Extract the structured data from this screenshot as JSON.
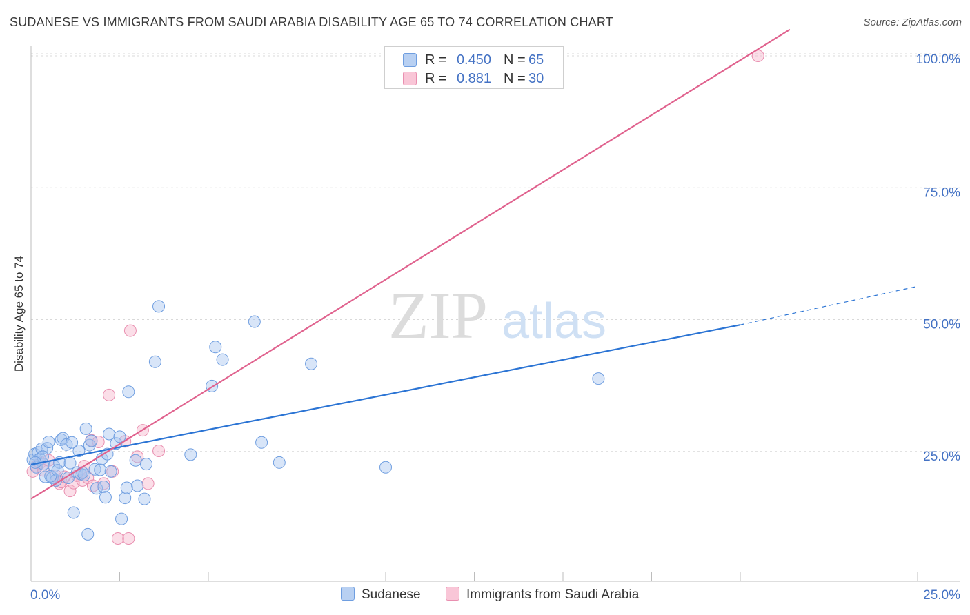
{
  "header": {
    "title": "SUDANESE VS IMMIGRANTS FROM SAUDI ARABIA DISABILITY AGE 65 TO 74 CORRELATION CHART",
    "source": "Source: ZipAtlas.com"
  },
  "watermark": {
    "zip": "ZIP",
    "atlas": "atlas"
  },
  "legend_top": {
    "rows": [
      {
        "r_label": "R =",
        "r_value": "0.450",
        "n_label": "N =",
        "n_value": "65"
      },
      {
        "r_label": "R =",
        "r_value": "0.881",
        "n_label": "N =",
        "n_value": "30"
      }
    ]
  },
  "colors": {
    "blue_fill": "#a8c6f0",
    "blue_stroke": "#6f9ee0",
    "blue_line": "#2b74d4",
    "pink_fill": "#f6b6cc",
    "pink_stroke": "#e98fb0",
    "pink_line": "#e0628e",
    "tick_text": "#4472c4",
    "grid": "#d9d9d9"
  },
  "chart_data": {
    "type": "scatter",
    "title": "SUDANESE VS IMMIGRANTS FROM SAUDI ARABIA DISABILITY AGE 65 TO 74 CORRELATION CHART",
    "xlabel": "",
    "ylabel": "Disability Age 65 to 74",
    "xlim": [
      0,
      25
    ],
    "ylim": [
      0,
      105
    ],
    "x_tick_labels": [
      "0.0%",
      "25.0%"
    ],
    "y_ticks": [
      25,
      50,
      75,
      100
    ],
    "y_tick_labels": [
      "25.0%",
      "50.0%",
      "75.0%",
      "100.0%"
    ],
    "grid": true,
    "legend_position": "bottom",
    "series": [
      {
        "name": "Sudanese",
        "r": 0.45,
        "n": 65,
        "trend": {
          "x0": 0,
          "y0": 22.5,
          "x1": 20,
          "y1": 49.0,
          "dashed_to_x": 25,
          "dashed_to_y": 56.3
        },
        "points": [
          [
            0.05,
            23.4
          ],
          [
            0.1,
            24.5
          ],
          [
            0.15,
            22.0
          ],
          [
            0.2,
            24.8
          ],
          [
            0.25,
            23.6
          ],
          [
            0.3,
            25.5
          ],
          [
            0.35,
            22.6
          ],
          [
            0.4,
            20.2
          ],
          [
            0.45,
            25.6
          ],
          [
            0.5,
            26.8
          ],
          [
            0.6,
            20.0
          ],
          [
            0.65,
            22.2
          ],
          [
            0.7,
            19.5
          ],
          [
            0.8,
            22.9
          ],
          [
            0.85,
            27.2
          ],
          [
            0.9,
            27.5
          ],
          [
            1.0,
            26.3
          ],
          [
            1.05,
            20.0
          ],
          [
            1.1,
            22.8
          ],
          [
            1.2,
            13.4
          ],
          [
            1.3,
            21.0
          ],
          [
            1.35,
            25.1
          ],
          [
            1.4,
            20.7
          ],
          [
            1.5,
            20.5
          ],
          [
            1.55,
            29.3
          ],
          [
            1.6,
            9.3
          ],
          [
            1.65,
            26.2
          ],
          [
            1.7,
            27.0
          ],
          [
            1.8,
            21.6
          ],
          [
            1.85,
            18.0
          ],
          [
            1.95,
            21.5
          ],
          [
            2.0,
            23.6
          ],
          [
            2.05,
            18.3
          ],
          [
            2.1,
            16.3
          ],
          [
            2.15,
            24.5
          ],
          [
            2.2,
            28.3
          ],
          [
            2.25,
            21.2
          ],
          [
            2.4,
            26.5
          ],
          [
            2.5,
            27.8
          ],
          [
            2.55,
            12.2
          ],
          [
            2.65,
            16.2
          ],
          [
            2.7,
            18.1
          ],
          [
            2.75,
            36.3
          ],
          [
            2.95,
            23.3
          ],
          [
            3.0,
            18.5
          ],
          [
            3.2,
            16.0
          ],
          [
            3.25,
            22.6
          ],
          [
            3.5,
            42.0
          ],
          [
            3.6,
            52.5
          ],
          [
            4.5,
            24.4
          ],
          [
            5.1,
            37.4
          ],
          [
            5.2,
            44.8
          ],
          [
            5.4,
            42.4
          ],
          [
            6.3,
            49.6
          ],
          [
            6.5,
            26.7
          ],
          [
            7.0,
            22.9
          ],
          [
            7.9,
            41.6
          ],
          [
            10.0,
            22.0
          ],
          [
            16.0,
            38.8
          ],
          [
            0.55,
            20.3
          ],
          [
            0.75,
            21.4
          ],
          [
            1.15,
            26.7
          ],
          [
            1.45,
            21.0
          ],
          [
            0.33,
            24.0
          ],
          [
            0.12,
            22.9
          ]
        ]
      },
      {
        "name": "Immigrants from Saudi Arabia",
        "r": 0.881,
        "n": 30,
        "trend": {
          "x0": 0,
          "y0": 16.0,
          "x1": 21.4,
          "y1": 105.0
        },
        "points": [
          [
            0.05,
            21.2
          ],
          [
            0.15,
            22.2
          ],
          [
            0.25,
            22.8
          ],
          [
            0.35,
            21.4
          ],
          [
            0.5,
            23.3
          ],
          [
            0.7,
            20.4
          ],
          [
            0.8,
            18.9
          ],
          [
            0.85,
            19.2
          ],
          [
            0.95,
            20.2
          ],
          [
            1.1,
            17.5
          ],
          [
            1.2,
            19.0
          ],
          [
            1.3,
            20.4
          ],
          [
            1.45,
            19.5
          ],
          [
            1.5,
            22.2
          ],
          [
            1.6,
            20.0
          ],
          [
            1.7,
            27.1
          ],
          [
            1.75,
            18.5
          ],
          [
            1.9,
            26.8
          ],
          [
            2.05,
            18.9
          ],
          [
            2.2,
            35.7
          ],
          [
            2.3,
            21.2
          ],
          [
            2.45,
            8.5
          ],
          [
            2.65,
            26.9
          ],
          [
            2.75,
            8.5
          ],
          [
            2.8,
            47.9
          ],
          [
            3.0,
            24.0
          ],
          [
            3.15,
            29.0
          ],
          [
            3.3,
            18.9
          ],
          [
            3.6,
            25.1
          ],
          [
            20.5,
            100.0
          ]
        ]
      }
    ]
  },
  "legend_bottom": {
    "items": [
      "Sudanese",
      "Immigrants from Saudi Arabia"
    ]
  }
}
